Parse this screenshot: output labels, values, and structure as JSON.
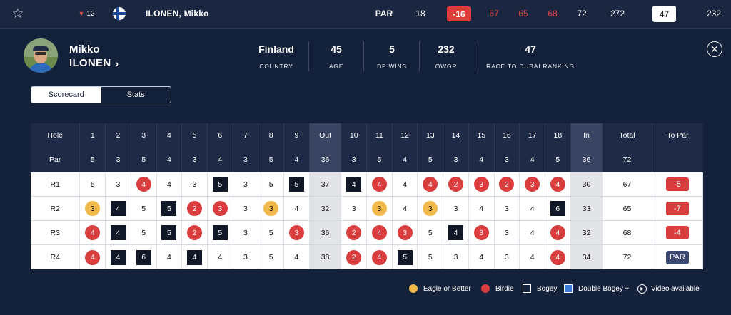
{
  "leaderboard": {
    "position_move": "12",
    "player_name": "ILONEN, Mikko",
    "par_label": "PAR",
    "thru": "18",
    "to_par": "-16",
    "rounds": [
      "67",
      "65",
      "68",
      "72"
    ],
    "total": "272",
    "rank": "47",
    "owgr": "232"
  },
  "player": {
    "first_name": "Mikko",
    "last_name": "ILONEN",
    "country": "Finland",
    "age": "45",
    "dp_wins": "5",
    "owgr": "232",
    "race_to_dubai": "47"
  },
  "stat_labels": {
    "country": "COUNTRY",
    "age": "AGE",
    "dp_wins": "DP WINS",
    "owgr": "OWGR",
    "race_to_dubai": "RACE TO DUBAI RANKING"
  },
  "tabs": [
    "Scorecard",
    "Stats"
  ],
  "scorecard": {
    "labels": {
      "hole": "Hole",
      "par": "Par",
      "out": "Out",
      "in": "In",
      "total": "Total",
      "to_par": "To Par"
    },
    "holes": [
      "1",
      "2",
      "3",
      "4",
      "5",
      "6",
      "7",
      "8",
      "9",
      "10",
      "11",
      "12",
      "13",
      "14",
      "15",
      "16",
      "17",
      "18"
    ],
    "par": [
      "5",
      "3",
      "5",
      "4",
      "3",
      "4",
      "3",
      "5",
      "4",
      "3",
      "5",
      "4",
      "5",
      "3",
      "4",
      "3",
      "4",
      "5"
    ],
    "par_out": "36",
    "par_in": "36",
    "par_total": "72",
    "rounds": [
      {
        "label": "R1",
        "scores": [
          "5",
          "3",
          "4",
          "4",
          "3",
          "5",
          "3",
          "5",
          "5",
          "4",
          "4",
          "4",
          "4",
          "2",
          "3",
          "2",
          "3",
          "4"
        ],
        "marks": [
          "",
          "",
          "birdie",
          "",
          "",
          "bogey",
          "",
          "",
          "bogey",
          "bogey",
          "birdie",
          "",
          "birdie",
          "birdie",
          "birdie",
          "birdie",
          "birdie",
          "birdie"
        ],
        "out": "37",
        "in": "30",
        "total": "67",
        "to_par": "-5"
      },
      {
        "label": "R2",
        "scores": [
          "3",
          "4",
          "5",
          "5",
          "2",
          "3",
          "3",
          "3",
          "4",
          "3",
          "3",
          "4",
          "3",
          "3",
          "4",
          "3",
          "4",
          "6"
        ],
        "marks": [
          "eagle",
          "bogey",
          "",
          "bogey",
          "birdie",
          "birdie",
          "",
          "eagle",
          "",
          "",
          "eagle",
          "",
          "eagle",
          "",
          "",
          "",
          "",
          "bogey"
        ],
        "out": "32",
        "in": "33",
        "total": "65",
        "to_par": "-7"
      },
      {
        "label": "R3",
        "scores": [
          "4",
          "4",
          "5",
          "5",
          "2",
          "5",
          "3",
          "5",
          "3",
          "2",
          "4",
          "3",
          "5",
          "4",
          "3",
          "3",
          "4",
          "4"
        ],
        "marks": [
          "birdie",
          "bogey",
          "",
          "bogey",
          "birdie",
          "bogey",
          "",
          "",
          "birdie",
          "birdie",
          "birdie",
          "birdie",
          "",
          "bogey",
          "birdie",
          "",
          "",
          "birdie"
        ],
        "out": "36",
        "in": "32",
        "total": "68",
        "to_par": "-4"
      },
      {
        "label": "R4",
        "scores": [
          "4",
          "4",
          "6",
          "4",
          "4",
          "4",
          "3",
          "5",
          "4",
          "2",
          "4",
          "5",
          "5",
          "3",
          "4",
          "3",
          "4",
          "4"
        ],
        "marks": [
          "birdie",
          "bogey",
          "bogey",
          "",
          "bogey",
          "",
          "",
          "",
          "",
          "birdie",
          "birdie",
          "bogey",
          "",
          "",
          "",
          "",
          "",
          "birdie"
        ],
        "out": "38",
        "in": "34",
        "total": "72",
        "to_par": "PAR"
      }
    ]
  },
  "legend": {
    "eagle": "Eagle or Better",
    "birdie": "Birdie",
    "bogey": "Bogey",
    "double_bogey": "Double Bogey +",
    "video": "Video available"
  },
  "colors": {
    "background": "#14213a",
    "birdie": "#d93d3d",
    "eagle": "#f0b94a",
    "bogey": "#111827",
    "double_bogey": "#3a7bd5"
  }
}
